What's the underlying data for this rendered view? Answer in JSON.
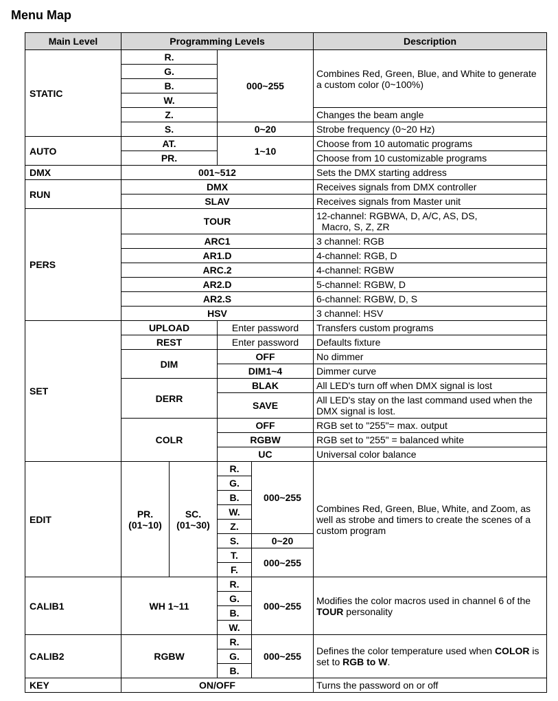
{
  "title": "Menu Map",
  "headers": {
    "main": "Main Level",
    "prog": "Programming Levels",
    "desc": "Description"
  },
  "static": {
    "label": "STATIC",
    "r": "R.",
    "g": "G.",
    "b": "B.",
    "w": "W.",
    "z": "Z.",
    "s": "S.",
    "rng": "000~255",
    "srng": "0~20",
    "d1": "Combines Red, Green, Blue, and White to generate a custom color (0~100%)",
    "d2": "Changes the beam angle",
    "d3": "Strobe frequency (0~20 Hz)"
  },
  "auto": {
    "label": "AUTO",
    "at": "AT.",
    "pr": "PR.",
    "rng": "1~10",
    "d1": "Choose from 10 automatic programs",
    "d2": "Choose from 10 customizable programs"
  },
  "dmx": {
    "label": "DMX",
    "rng": "001~512",
    "d": "Sets the DMX starting address"
  },
  "run": {
    "label": "RUN",
    "dmx": "DMX",
    "slav": "SLAV",
    "d1": "Receives signals from DMX controller",
    "d2": "Receives signals from Master unit"
  },
  "pers": {
    "label": "PERS",
    "tour": "TOUR",
    "arc1": "ARC1",
    "ar1d": "AR1.D",
    "arc2": "ARC.2",
    "ar2d": "AR2.D",
    "ar2s": "AR2.S",
    "hsv": "HSV",
    "d_tour_a": "12-channel: RGBWA, D, A/C, AS, DS,",
    "d_tour_b": "Macro, S, Z, ZR",
    "d_arc1": "3 channel: RGB",
    "d_ar1d": "4-channel: RGB, D",
    "d_arc2": "4-channel: RGBW",
    "d_ar2d": "5-channel: RGBW, D",
    "d_ar2s": "6-channel: RGBW, D, S",
    "d_hsv": "3 channel: HSV"
  },
  "set": {
    "label": "SET",
    "upload": "UPLOAD",
    "rest": "REST",
    "dim": "DIM",
    "derr": "DERR",
    "colr": "COLR",
    "pw": "Enter password",
    "off": "OFF",
    "dim14": "DIM1~4",
    "blak": "BLAK",
    "save": "SAVE",
    "rgbw": "RGBW",
    "uc": "UC",
    "d_upload": "Transfers custom programs",
    "d_rest": "Defaults fixture",
    "d_off": "No dimmer",
    "d_dim14": "Dimmer curve",
    "d_blak": "All LED's turn off when DMX signal is lost",
    "d_save": "All LED's stay on the last command used when the DMX signal is lost.",
    "d_coff": "RGB set to \"255\"= max. output",
    "d_crgbw": "RGB set to \"255\" = balanced white",
    "d_uc": "Universal color balance"
  },
  "edit": {
    "label": "EDIT",
    "pr": "PR.",
    "prr": "(01~10)",
    "sc": "SC.",
    "scr": "(01~30)",
    "r": "R.",
    "g": "G.",
    "b": "B.",
    "w": "W.",
    "z": "Z.",
    "s": "S.",
    "t": "T.",
    "f": "F.",
    "rng": "000~255",
    "srng": "0~20",
    "d": "Combines Red, Green, Blue, White, and Zoom, as well as strobe and timers to create the scenes of a custom program"
  },
  "calib1": {
    "label": "CALIB1",
    "wh": "WH 1~11",
    "r": "R.",
    "g": "G.",
    "b": "B.",
    "w": "W.",
    "rng": "000~255",
    "d_a": "Modifies the color macros used in channel 6 of the ",
    "d_b": "TOUR",
    "d_c": " personality"
  },
  "calib2": {
    "label": "CALIB2",
    "rgbw": "RGBW",
    "r": "R.",
    "g": "G.",
    "b": "B.",
    "rng": "000~255",
    "d_a": "Defines the color temperature used when ",
    "d_b": "COLOR",
    "d_c": " is set to ",
    "d_d": "RGB to W",
    "d_e": "."
  },
  "key": {
    "label": "KEY",
    "onoff": "ON/OFF",
    "d": "Turns the password on or off"
  }
}
